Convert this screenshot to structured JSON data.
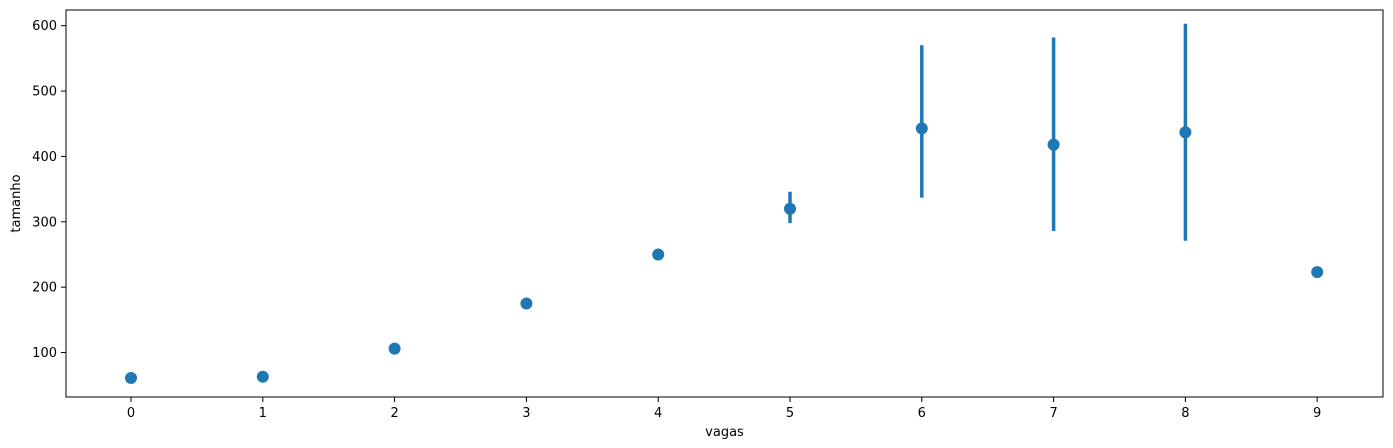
{
  "chart_data": {
    "type": "scatter",
    "subtype": "pointplot-with-error-bars",
    "title": "",
    "xlabel": "vagas",
    "ylabel": "tamanho",
    "categories": [
      "0",
      "1",
      "2",
      "3",
      "4",
      "5",
      "6",
      "7",
      "8",
      "9"
    ],
    "values": [
      61,
      63,
      106,
      175,
      250,
      320,
      443,
      418,
      437,
      223
    ],
    "error_low": [
      61,
      63,
      106,
      175,
      246,
      298,
      337,
      286,
      271,
      223
    ],
    "error_high": [
      61,
      63,
      106,
      175,
      254,
      346,
      570,
      582,
      603,
      223
    ],
    "ylim": [
      32,
      624
    ],
    "yticks": [
      100,
      200,
      300,
      400,
      500,
      600
    ],
    "grid": false,
    "legend": "none",
    "color": "#1f77b4"
  }
}
